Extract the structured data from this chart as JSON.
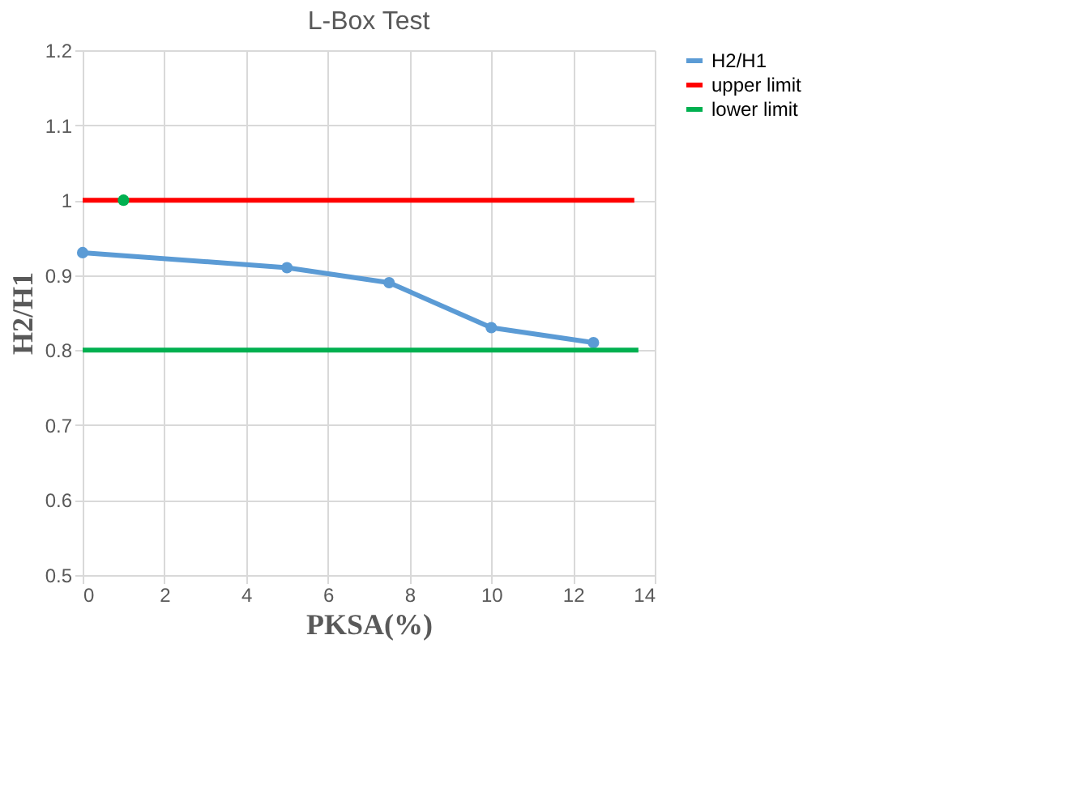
{
  "chart_data": {
    "type": "line",
    "title": "L-Box Test",
    "xlabel": "PKSA(%)",
    "ylabel": "H2/H1",
    "xlim": [
      0,
      14
    ],
    "xticks": [
      0,
      2,
      4,
      6,
      8,
      10,
      12,
      14
    ],
    "ylim": [
      0.5,
      1.2
    ],
    "yticks": [
      0.5,
      0.6,
      0.7,
      0.8,
      0.9,
      1,
      1.1,
      1.2
    ],
    "grid": true,
    "legend": "right",
    "series": [
      {
        "name": "H2/H1",
        "color": "#5b9bd5",
        "x": [
          0,
          5,
          7.5,
          10,
          12.5
        ],
        "values": [
          0.93,
          0.91,
          0.89,
          0.83,
          0.81
        ],
        "marker": "circle"
      },
      {
        "name": "upper limit",
        "color": "#ff0000",
        "x": [
          0,
          13.5
        ],
        "values": [
          1.0,
          1.0
        ],
        "marker": "none"
      },
      {
        "name": "lower limit",
        "color": "#00b050",
        "x": [
          0,
          13.6
        ],
        "values": [
          0.8,
          0.8
        ],
        "marker": "none"
      },
      {
        "type": "scatter",
        "color": "#00b050",
        "x": [
          1
        ],
        "values": [
          1.0
        ],
        "marker": "circle"
      }
    ]
  }
}
